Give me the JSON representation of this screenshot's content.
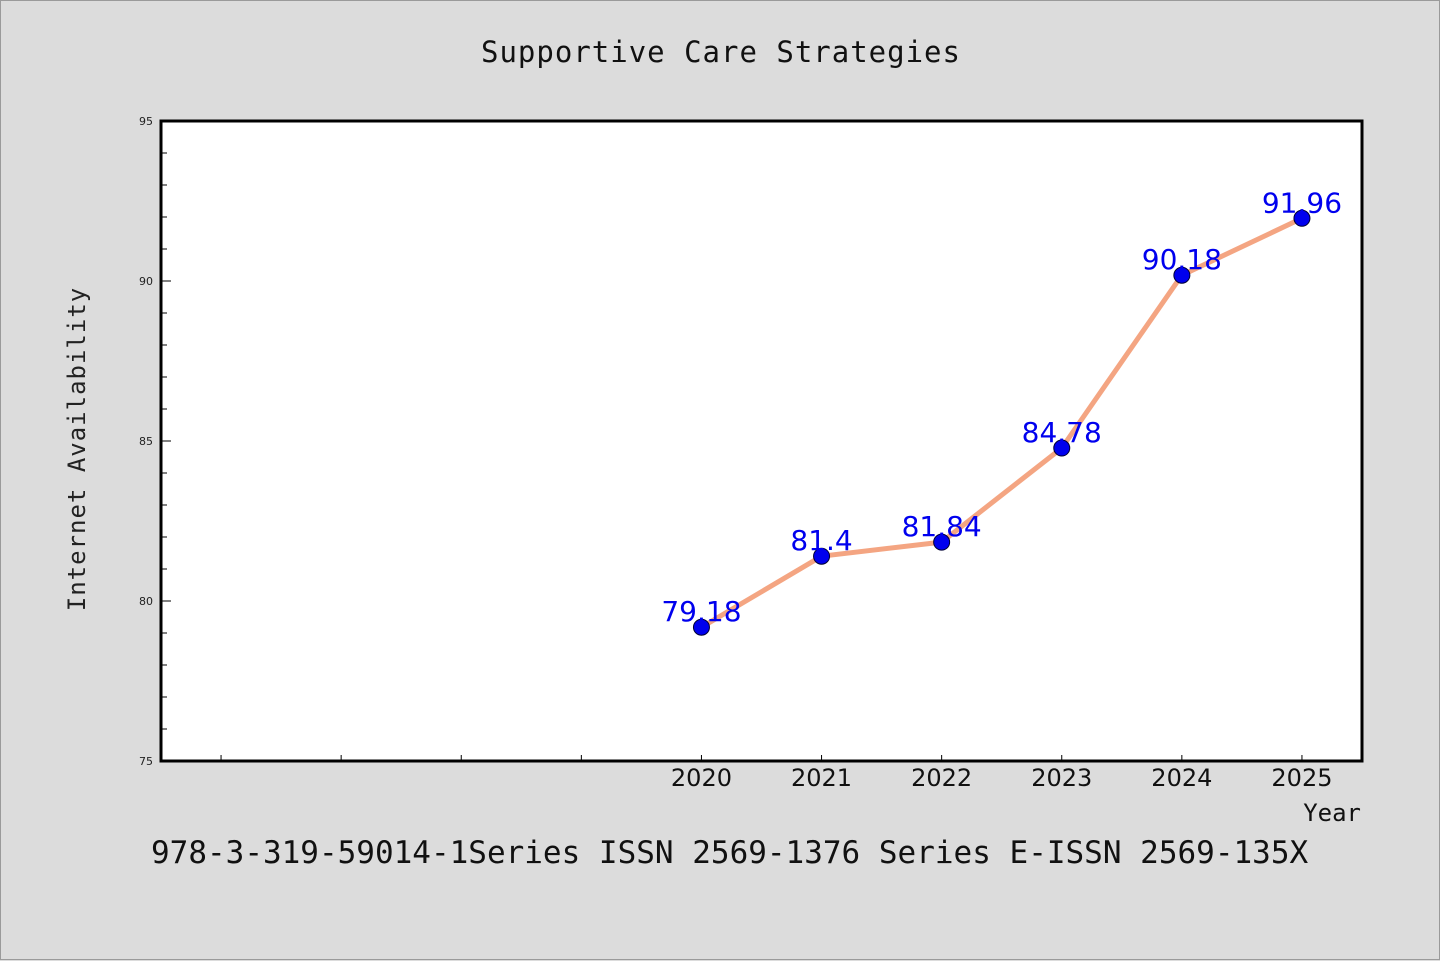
{
  "page": {
    "footer_text": "978-3-319-59014-1Series ISSN 2569-1376 Series E-ISSN 2569-135X"
  },
  "colors": {
    "background": "#dcdcdc",
    "plot_background": "#ffffff",
    "line": "#f4a582",
    "marker": "#0000ee",
    "data_label": "#0000ee"
  },
  "chart_data": {
    "type": "line",
    "title": "Supportive Care Strategies",
    "xlabel": "Year",
    "ylabel": "Internet Availability",
    "x": [
      "2020",
      "2021",
      "2022",
      "2023",
      "2024",
      "2025"
    ],
    "series": [
      {
        "values": [
          79.18,
          81.4,
          81.84,
          84.78,
          90.18,
          91.96
        ]
      }
    ],
    "data_labels": [
      "79.18",
      "81.4",
      "81.84",
      "84.78",
      "90.18",
      "91.96"
    ],
    "xlim": [
      2015.5,
      2025.5
    ],
    "ylim": [
      75,
      95
    ],
    "y_ticks": [
      75,
      80,
      85,
      90,
      95
    ],
    "grid": false,
    "legend": "none"
  }
}
